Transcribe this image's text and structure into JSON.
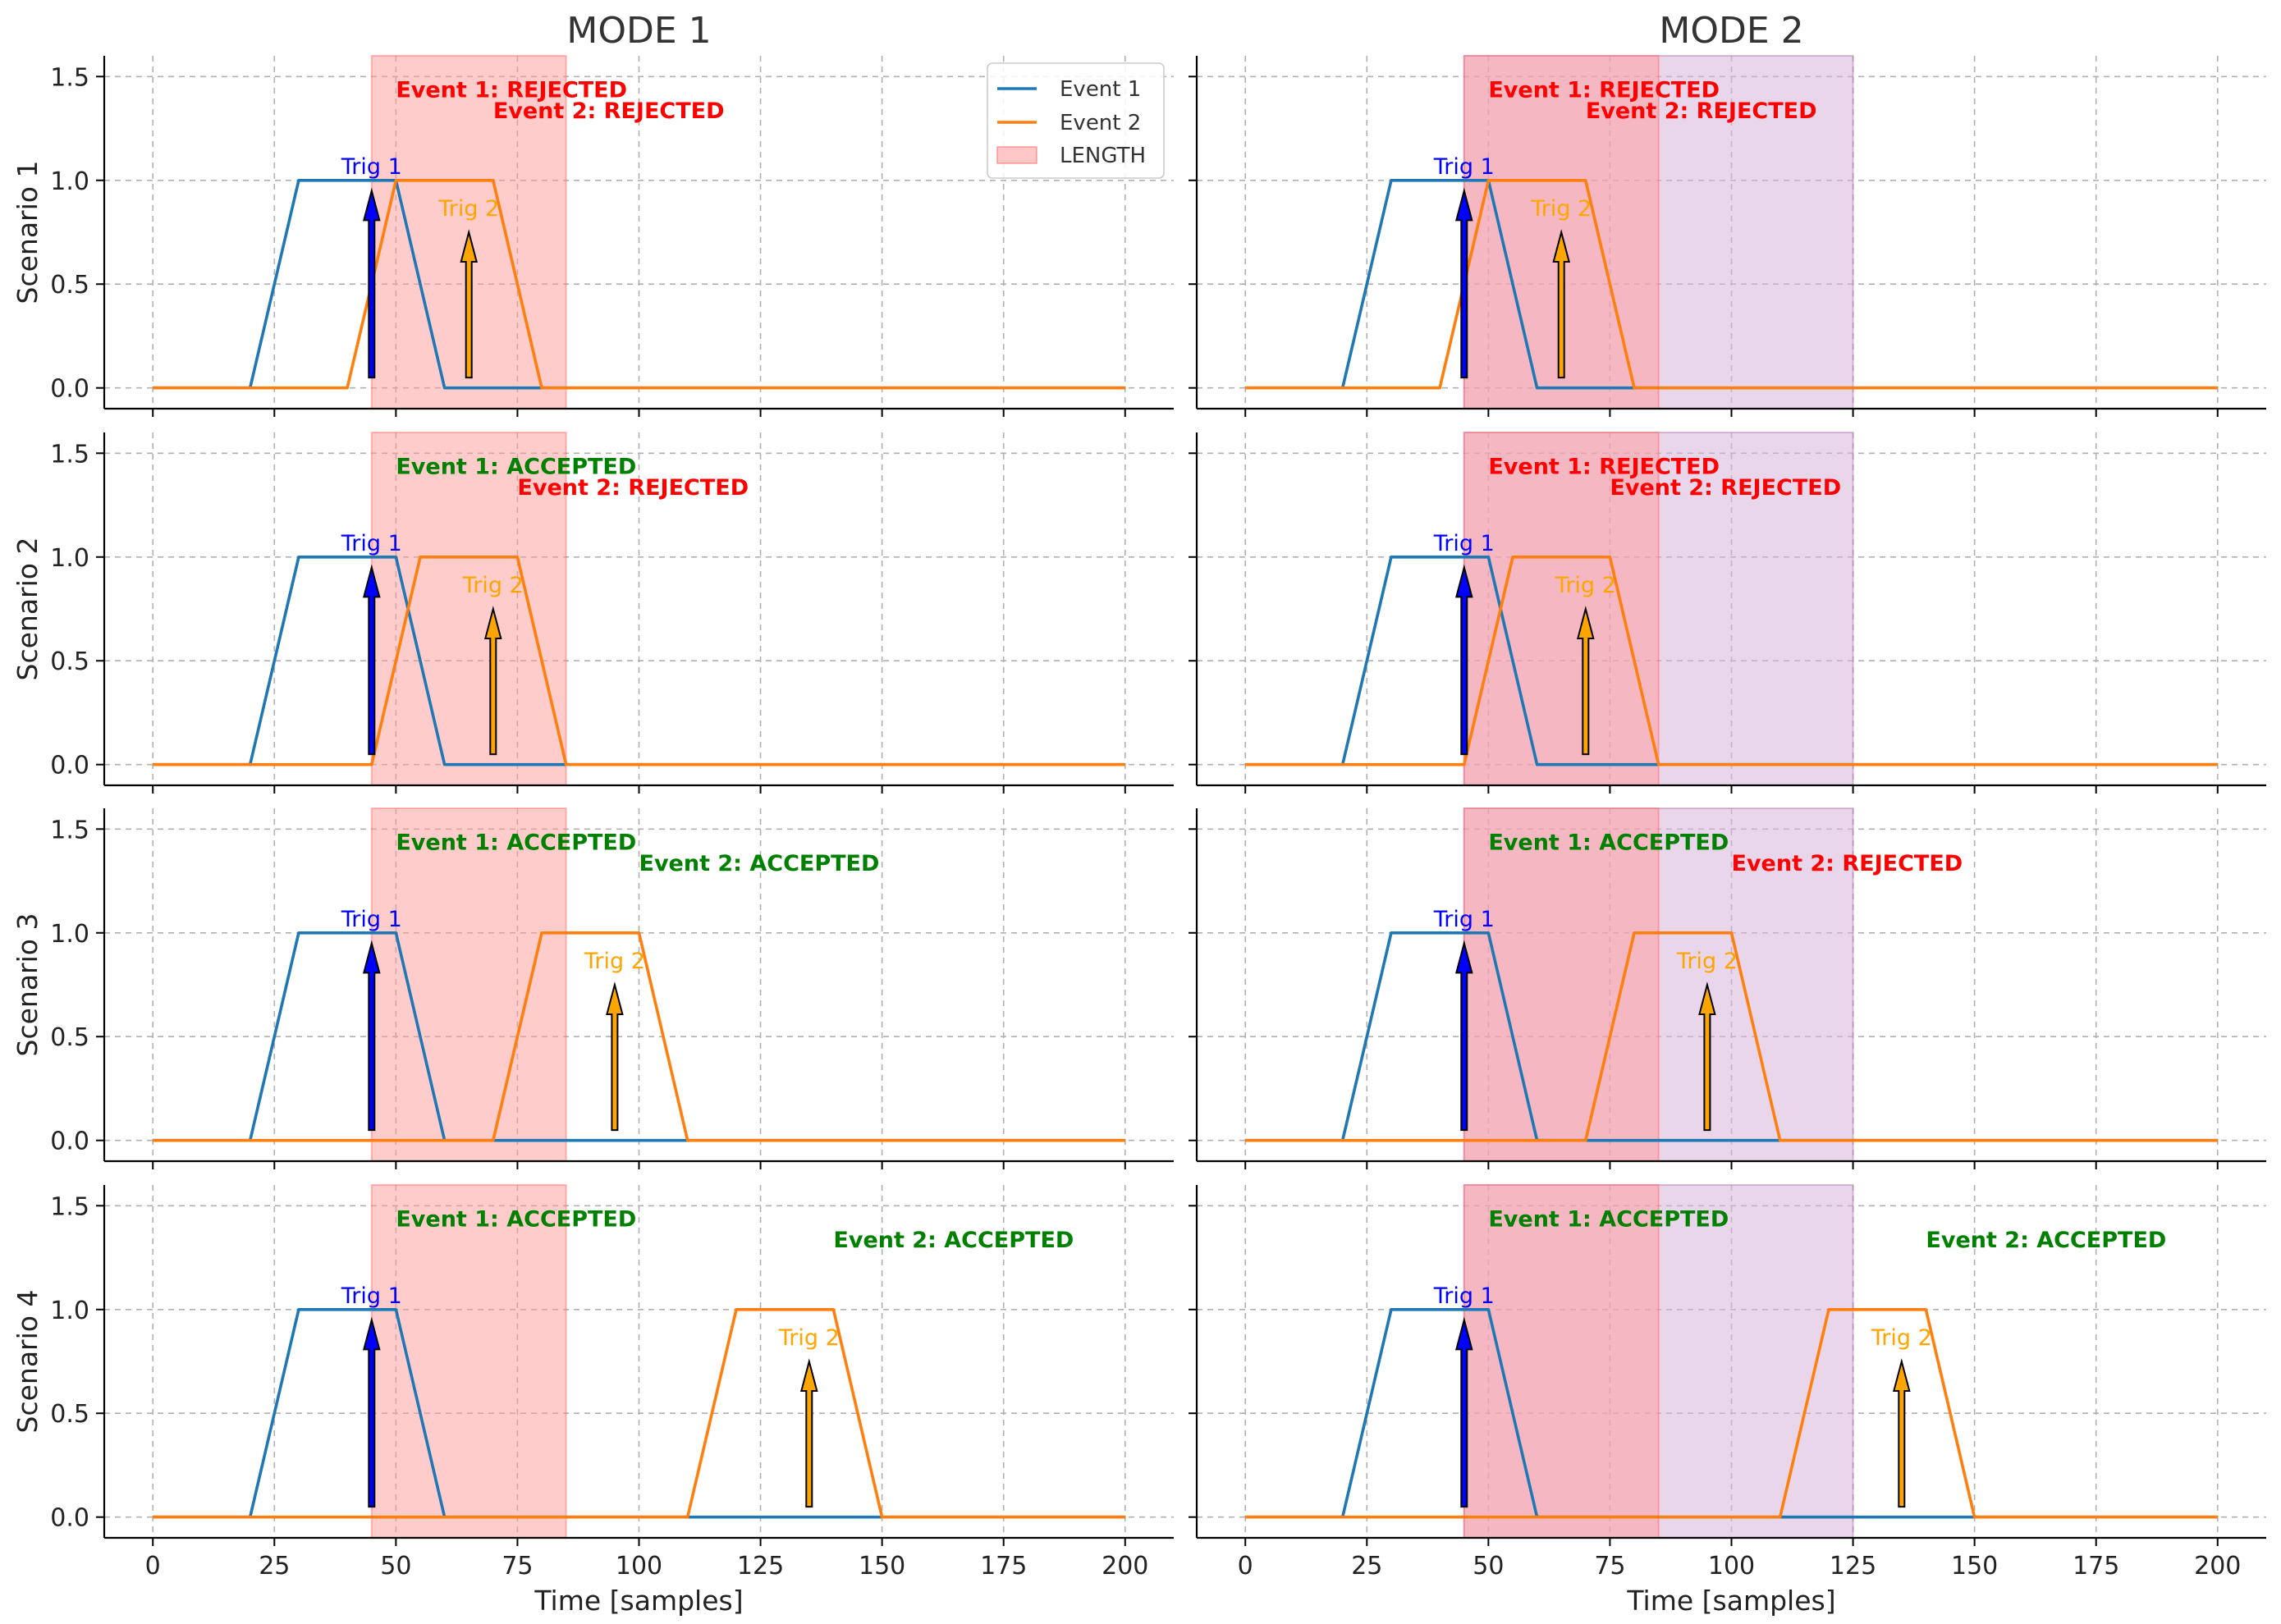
{
  "chart_data": {
    "type": "line",
    "columns": [
      "MODE 1",
      "MODE 2"
    ],
    "rows": [
      "Scenario 1",
      "Scenario 2",
      "Scenario 3",
      "Scenario 4"
    ],
    "xlabel": "Time [samples]",
    "xlim": [
      -10,
      210
    ],
    "ylim": [
      -0.1,
      1.6
    ],
    "xticks": [
      0,
      25,
      50,
      75,
      100,
      125,
      150,
      175,
      200
    ],
    "yticks": [
      0.0,
      0.5,
      1.0,
      1.5
    ],
    "ytick_labels": [
      "0.0",
      "0.5",
      "1.0",
      "1.5"
    ],
    "grid": true,
    "legend": {
      "placement": "top-right",
      "in_panel": "MODE 1 / Scenario 1",
      "entries": [
        "Event 1",
        "Event 2",
        "LENGTH"
      ]
    },
    "colors": {
      "event1": "#1f77b4",
      "event2": "#ff7f0e",
      "trig1_arrow": "#0000ff",
      "trig2_arrow": "#ffa500",
      "length_span": "#ff9999",
      "extended_span": "#d8b4d8",
      "accepted": "#008000",
      "rejected": "#ff0000"
    },
    "length_span": [
      45,
      85
    ],
    "mode2_extended_span": [
      45,
      125
    ],
    "trig1": {
      "label": "Trig 1",
      "x": 45,
      "arrow": [
        0.05,
        0.95
      ],
      "label_y": 1.03
    },
    "trig2": {
      "label": "Trig 2",
      "arrow_top": 0.75,
      "label_y": 0.83
    },
    "scenarios": [
      {
        "event1": {
          "x": [
            0,
            20,
            30,
            50,
            60,
            200
          ],
          "y": [
            0,
            0,
            1,
            1,
            0,
            0
          ]
        },
        "event2": {
          "x": [
            0,
            40,
            50,
            70,
            80,
            200
          ],
          "y": [
            0,
            0,
            1,
            1,
            0,
            0
          ]
        },
        "trig2_x": 65,
        "mode1": {
          "event1_status": "Event 1: REJECTED",
          "event1_accepted": false,
          "event2_status": "Event 2: REJECTED",
          "event2_accepted": false,
          "event2_label_x": 70
        },
        "mode2": {
          "event1_status": "Event 1: REJECTED",
          "event1_accepted": false,
          "event2_status": "Event 2: REJECTED",
          "event2_accepted": false,
          "event2_label_x": 70
        }
      },
      {
        "event1": {
          "x": [
            0,
            20,
            30,
            50,
            60,
            200
          ],
          "y": [
            0,
            0,
            1,
            1,
            0,
            0
          ]
        },
        "event2": {
          "x": [
            0,
            45,
            55,
            75,
            85,
            200
          ],
          "y": [
            0,
            0,
            1,
            1,
            0,
            0
          ]
        },
        "trig2_x": 70,
        "mode1": {
          "event1_status": "Event 1: ACCEPTED",
          "event1_accepted": true,
          "event2_status": "Event 2: REJECTED",
          "event2_accepted": false,
          "event2_label_x": 75
        },
        "mode2": {
          "event1_status": "Event 1: REJECTED",
          "event1_accepted": false,
          "event2_status": "Event 2: REJECTED",
          "event2_accepted": false,
          "event2_label_x": 75
        }
      },
      {
        "event1": {
          "x": [
            0,
            20,
            30,
            50,
            60,
            200
          ],
          "y": [
            0,
            0,
            1,
            1,
            0,
            0
          ]
        },
        "event2": {
          "x": [
            0,
            70,
            80,
            100,
            110,
            200
          ],
          "y": [
            0,
            0,
            1,
            1,
            0,
            0
          ]
        },
        "trig2_x": 95,
        "mode1": {
          "event1_status": "Event 1: ACCEPTED",
          "event1_accepted": true,
          "event2_status": "Event 2: ACCEPTED",
          "event2_accepted": true,
          "event2_label_x": 100
        },
        "mode2": {
          "event1_status": "Event 1: ACCEPTED",
          "event1_accepted": true,
          "event2_status": "Event 2: REJECTED",
          "event2_accepted": false,
          "event2_label_x": 100
        }
      },
      {
        "event1": {
          "x": [
            0,
            20,
            30,
            50,
            60,
            200
          ],
          "y": [
            0,
            0,
            1,
            1,
            0,
            0
          ]
        },
        "event2": {
          "x": [
            0,
            110,
            120,
            140,
            150,
            200
          ],
          "y": [
            0,
            0,
            1,
            1,
            0,
            0
          ]
        },
        "trig2_x": 135,
        "mode1": {
          "event1_status": "Event 1: ACCEPTED",
          "event1_accepted": true,
          "event2_status": "Event 2: ACCEPTED",
          "event2_accepted": true,
          "event2_label_x": 140
        },
        "mode2": {
          "event1_status": "Event 1: ACCEPTED",
          "event1_accepted": true,
          "event2_status": "Event 2: ACCEPTED",
          "event2_accepted": true,
          "event2_label_x": 140
        }
      }
    ]
  }
}
